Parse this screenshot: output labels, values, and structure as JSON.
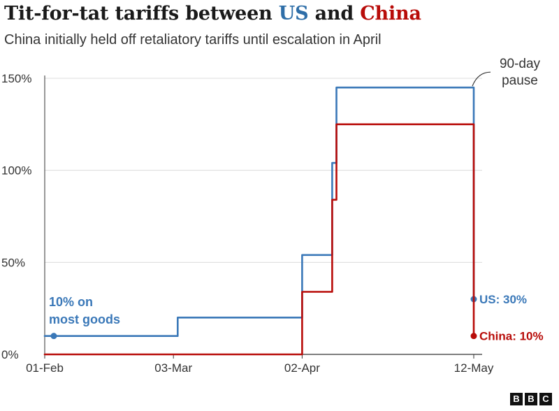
{
  "header": {
    "title_prefix": "Tit-for-tat tariffs between ",
    "title_us": "US",
    "title_and": " and ",
    "title_china": "China",
    "subtitle": "China initially held off retaliatory tariffs until escalation in April"
  },
  "colors": {
    "us": "#3a78b8",
    "china": "#b80c09",
    "grid": "#dcdcdc",
    "axis": "#333333"
  },
  "chart_data": {
    "type": "line",
    "title": "Tit-for-tat tariffs between US and China",
    "subtitle": "China initially held off retaliatory tariffs until escalation in April",
    "x_ticks": [
      "01-Feb",
      "03-Mar",
      "02-Apr",
      "12-May"
    ],
    "x_range": [
      "2025-02-01",
      "2025-05-12"
    ],
    "y_ticks": [
      "0%",
      "50%",
      "100%",
      "150%"
    ],
    "ylim": [
      0,
      150
    ],
    "grid": "horizontal",
    "series": [
      {
        "name": "US",
        "color": "#3a78b8",
        "points": [
          {
            "date": "2025-02-01",
            "value": 10
          },
          {
            "date": "2025-03-04",
            "value": 10
          },
          {
            "date": "2025-03-04",
            "value": 20
          },
          {
            "date": "2025-04-02",
            "value": 20
          },
          {
            "date": "2025-04-02",
            "value": 54
          },
          {
            "date": "2025-04-09",
            "value": 54
          },
          {
            "date": "2025-04-09",
            "value": 104
          },
          {
            "date": "2025-04-10",
            "value": 104
          },
          {
            "date": "2025-04-10",
            "value": 145
          },
          {
            "date": "2025-05-12",
            "value": 145
          },
          {
            "date": "2025-05-12",
            "value": 30
          }
        ],
        "end_label": "US: 30%"
      },
      {
        "name": "China",
        "color": "#b80c09",
        "points": [
          {
            "date": "2025-02-01",
            "value": 0
          },
          {
            "date": "2025-04-02",
            "value": 0
          },
          {
            "date": "2025-04-02",
            "value": 34
          },
          {
            "date": "2025-04-09",
            "value": 34
          },
          {
            "date": "2025-04-09",
            "value": 84
          },
          {
            "date": "2025-04-10",
            "value": 84
          },
          {
            "date": "2025-04-10",
            "value": 125
          },
          {
            "date": "2025-05-12",
            "value": 125
          },
          {
            "date": "2025-05-12",
            "value": 10
          }
        ],
        "end_label": "China: 10%"
      }
    ],
    "annotations": [
      {
        "id": "start",
        "text_lines": [
          "10% on",
          "most goods"
        ],
        "date": "2025-02-01",
        "value": 10,
        "color": "#3a78b8"
      },
      {
        "id": "pause",
        "text_lines": [
          "90-day",
          "pause"
        ],
        "date": "2025-05-12",
        "value": 145,
        "color": "#333333"
      }
    ]
  },
  "footer": {
    "logo_letters": [
      "B",
      "B",
      "C"
    ]
  }
}
